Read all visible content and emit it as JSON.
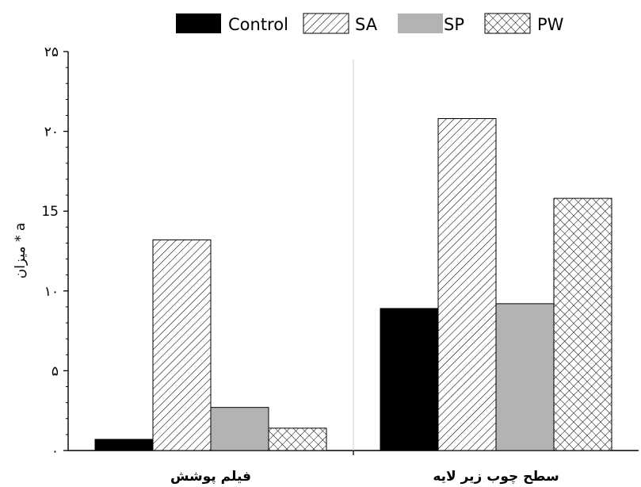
{
  "chart_data": {
    "type": "bar",
    "title": "",
    "xlabel": "",
    "ylabel": "میزان * a",
    "ylim": [
      0,
      25
    ],
    "y_ticks": [
      {
        "value": 0,
        "label": "۰"
      },
      {
        "value": 5,
        "label": "۵"
      },
      {
        "value": 10,
        "label": "۱۰"
      },
      {
        "value": 15,
        "label": "15"
      },
      {
        "value": 20,
        "label": "۲۰"
      },
      {
        "value": 25,
        "label": "۲۵"
      }
    ],
    "categories": [
      "فیلم پوشش",
      "سطح چوب زیر لایه"
    ],
    "series": [
      {
        "name": "Control",
        "pattern": "solid",
        "color": "#000000",
        "values": [
          0.7,
          8.9
        ]
      },
      {
        "name": "SA",
        "pattern": "diagonal-hatch",
        "color": "#000000",
        "values": [
          13.2,
          20.8
        ]
      },
      {
        "name": "SP",
        "pattern": "solid",
        "color": "#b3b3b3",
        "values": [
          2.7,
          9.2
        ]
      },
      {
        "name": "PW",
        "pattern": "crosshatch",
        "color": "#000000",
        "values": [
          1.4,
          15.8
        ]
      }
    ],
    "legend_position": "top",
    "grid": false,
    "group_separator": true
  }
}
